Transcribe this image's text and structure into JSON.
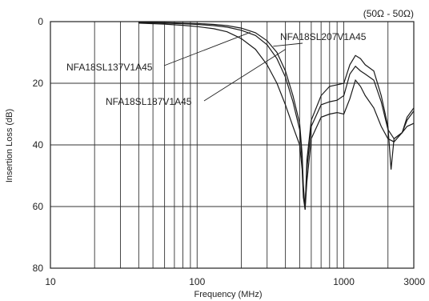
{
  "chart_data": {
    "type": "line",
    "xscale": "log",
    "xlabel": "Frequency (MHz)",
    "ylabel": "Insertion Loss (dB)",
    "xlim": [
      10,
      3000
    ],
    "ylim": [
      0,
      80
    ],
    "y_inverted": true,
    "grid": true,
    "x_ticks": [
      10,
      100,
      1000,
      3000
    ],
    "y_ticks": [
      0,
      20,
      40,
      60,
      80
    ],
    "annotation": "(50Ω - 50Ω)",
    "series": [
      {
        "name": "NFA18SL137V1A45",
        "x": [
          40,
          60,
          80,
          100,
          130,
          160,
          200,
          250,
          300,
          350,
          400,
          450,
          500,
          520,
          530,
          545,
          560,
          600,
          700,
          800,
          900,
          1000,
          1100,
          1200,
          1300,
          1400,
          1600,
          1800,
          2000,
          2200,
          2500,
          2700,
          3000
        ],
        "y": [
          0.5,
          0.8,
          1.2,
          1.6,
          2.3,
          3.3,
          5.5,
          9,
          14,
          20,
          27,
          34,
          40,
          48,
          57,
          61,
          52,
          38,
          31,
          30,
          29.5,
          30,
          25,
          19,
          21,
          24,
          28,
          34,
          38,
          39,
          36,
          34,
          33
        ]
      },
      {
        "name": "NFA18SL187V1A45",
        "x": [
          40,
          60,
          80,
          100,
          130,
          160,
          200,
          250,
          300,
          350,
          400,
          450,
          500,
          520,
          530,
          545,
          560,
          600,
          700,
          800,
          900,
          1000,
          1100,
          1200,
          1300,
          1400,
          1600,
          1800,
          2000,
          2200,
          2500,
          2700,
          3000
        ],
        "y": [
          0.3,
          0.5,
          0.7,
          0.9,
          1.3,
          1.8,
          2.8,
          4.5,
          7.5,
          12,
          18,
          26,
          35,
          45,
          55,
          60,
          48,
          34,
          27,
          26,
          25.5,
          24,
          17,
          14.5,
          16,
          17,
          19,
          26,
          35,
          38,
          36,
          32,
          29
        ]
      },
      {
        "name": "NFA18SL207V1A45",
        "x": [
          40,
          60,
          80,
          100,
          130,
          160,
          200,
          250,
          300,
          350,
          400,
          450,
          500,
          520,
          530,
          545,
          560,
          600,
          700,
          800,
          900,
          1000,
          1100,
          1200,
          1300,
          1400,
          1600,
          1800,
          2000,
          2100,
          2200,
          2500,
          2700,
          3000
        ],
        "y": [
          0.2,
          0.3,
          0.5,
          0.6,
          0.9,
          1.3,
          2.1,
          3.6,
          6.2,
          10,
          16,
          24,
          33,
          43,
          53,
          61,
          45,
          32,
          24,
          21,
          20.5,
          20,
          14,
          11,
          12,
          14,
          16,
          24,
          34,
          48,
          38,
          36,
          31,
          28
        ]
      }
    ],
    "labels": [
      {
        "text": "NFA18SL207V1A45",
        "points_to": {
          "x": 330,
          "y": 8
        }
      },
      {
        "text": "NFA18SL137V1A45",
        "points_to": {
          "x": 230,
          "y": 3.5
        }
      },
      {
        "text": "NFA18SL187V1A45",
        "points_to": {
          "x": 400,
          "y": 9
        }
      }
    ]
  }
}
